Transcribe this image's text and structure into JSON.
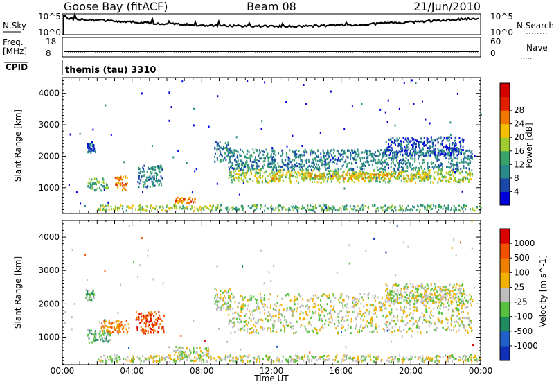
{
  "header": {
    "station": "Goose Bay (fitACF)",
    "beam": "Beam 08",
    "date": "21/Jun/2010"
  },
  "top_panels": {
    "nsky_label": "N.Sky",
    "nsky_ticks": [
      "10^5",
      "10^0"
    ],
    "nsearch_label": "N.Search",
    "nsearch_ticks": [
      "10^5",
      "10^0"
    ],
    "freq_label": "Freq.",
    "freq_unit": "[MHz]",
    "freq_ticks": [
      "18",
      "8"
    ],
    "nave_label": "Nave",
    "nave_ticks": [
      "60",
      "0"
    ],
    "cpid_label": "CPID",
    "cpid_value": "themis (tau) 3310"
  },
  "chart_data": [
    {
      "type": "heatmap",
      "title": "",
      "xlabel": "Time UT",
      "ylabel": "Slant Range [km]",
      "xlim": [
        0,
        24
      ],
      "ylim": [
        180,
        4500
      ],
      "yticks": [
        1000,
        2000,
        3000,
        4000
      ],
      "xticks": [
        "00:00",
        "04:00",
        "08:00",
        "12:00",
        "16:00",
        "20:00",
        "00:00"
      ],
      "colorbar": {
        "label": "Power [dB]",
        "ticks": [
          "4",
          "8",
          "12",
          "16",
          "20",
          "24",
          "28"
        ],
        "colors": [
          "#0000dd",
          "#1a48a8",
          "#2a8a8a",
          "#3aa36a",
          "#a0cc30",
          "#f2c000",
          "#f07800",
          "#e02000",
          "#d40000"
        ]
      },
      "regions": [
        {
          "t0": 1.4,
          "t1": 2.6,
          "r0": 900,
          "r1": 1300,
          "level": 3
        },
        {
          "t0": 3.0,
          "t1": 3.7,
          "r0": 900,
          "r1": 1350,
          "level": 6
        },
        {
          "t0": 1.3,
          "t1": 1.9,
          "r0": 2100,
          "r1": 2450,
          "level": 1
        },
        {
          "t0": 4.3,
          "t1": 5.7,
          "r0": 1000,
          "r1": 1700,
          "level": 2
        },
        {
          "t0": 2.0,
          "t1": 9.0,
          "r0": 250,
          "r1": 430,
          "level": 4
        },
        {
          "t0": 6.4,
          "t1": 7.6,
          "r0": 480,
          "r1": 680,
          "level": 6
        },
        {
          "t0": 8.8,
          "t1": 24.0,
          "r0": 250,
          "r1": 430,
          "level": 3
        },
        {
          "t0": 8.7,
          "t1": 9.6,
          "r0": 1800,
          "r1": 2450,
          "level": 2
        },
        {
          "t0": 9.5,
          "t1": 23.5,
          "r0": 1150,
          "r1": 1550,
          "level": 4
        },
        {
          "t0": 9.5,
          "t1": 23.5,
          "r0": 1550,
          "r1": 2200,
          "level": 2
        },
        {
          "t0": 12.0,
          "t1": 21.0,
          "r0": 1250,
          "r1": 1450,
          "level": 5
        },
        {
          "t0": 18.5,
          "t1": 23.0,
          "r0": 2000,
          "r1": 2600,
          "level": 1
        }
      ]
    },
    {
      "type": "heatmap",
      "title": "",
      "xlabel": "Time UT",
      "ylabel": "Slant Range [km]",
      "xlim": [
        0,
        24
      ],
      "ylim": [
        180,
        4500
      ],
      "yticks": [
        1000,
        2000,
        3000,
        4000
      ],
      "xticks": [
        "00:00",
        "04:00",
        "08:00",
        "12:00",
        "16:00",
        "20:00",
        "00:00"
      ],
      "colorbar": {
        "label": "Velocity [m s^-1]",
        "ticks": [
          "1000",
          "500",
          "100",
          "25",
          "-25",
          "-100",
          "-500",
          "-1000"
        ],
        "colors": [
          "#1030b8",
          "#2060c8",
          "#208a60",
          "#58c040",
          "#bdbdbd",
          "#f2b000",
          "#f08000",
          "#f05000",
          "#d80000"
        ]
      },
      "regions": [
        {
          "t0": 1.4,
          "t1": 2.8,
          "r0": 800,
          "r1": 1200,
          "level": 3
        },
        {
          "t0": 2.2,
          "t1": 3.8,
          "r0": 1100,
          "r1": 1500,
          "level": 6
        },
        {
          "t0": 4.2,
          "t1": 5.8,
          "r0": 1100,
          "r1": 1750,
          "level": 7
        },
        {
          "t0": 1.3,
          "t1": 1.8,
          "r0": 2100,
          "r1": 2400,
          "level": 3
        },
        {
          "t0": 2.0,
          "t1": 24.0,
          "r0": 250,
          "r1": 450,
          "level": 4
        },
        {
          "t0": 6.3,
          "t1": 8.4,
          "r0": 430,
          "r1": 700,
          "level": 4
        },
        {
          "t0": 8.7,
          "t1": 9.6,
          "r0": 1800,
          "r1": 2450,
          "level": 4
        },
        {
          "t0": 9.5,
          "t1": 23.5,
          "r0": 1100,
          "r1": 2300,
          "level": 4
        },
        {
          "t0": 18.5,
          "t1": 23.0,
          "r0": 2000,
          "r1": 2600,
          "level": 4
        }
      ]
    }
  ]
}
